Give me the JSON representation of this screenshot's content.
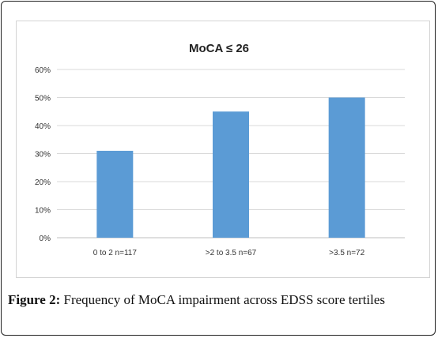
{
  "chart_data": {
    "type": "bar",
    "title": "MoCA ≤ 26",
    "categories": [
      "0 to 2 n=117",
      ">2 to 3.5 n=67",
      ">3.5 n=72"
    ],
    "values": [
      0.31,
      0.45,
      0.5
    ],
    "yticks": [
      "0%",
      "10%",
      "20%",
      "30%",
      "40%",
      "50%",
      "60%"
    ],
    "ylim": [
      0,
      0.6
    ],
    "grid": true,
    "legend": "none",
    "bar_color": "#5b9bd5",
    "grid_color": "#d9d9d9"
  },
  "caption": {
    "label": "Figure 2:",
    "text": "Frequency of MoCA impairment across EDSS score tertiles"
  }
}
